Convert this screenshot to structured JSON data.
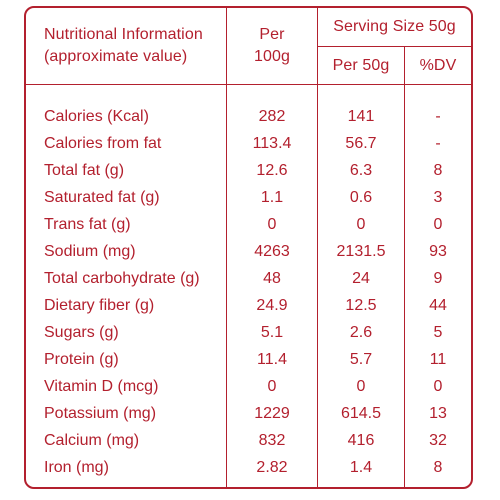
{
  "header": {
    "title_line1": "Nutritional Information",
    "title_line2": "(approximate value)",
    "per100_line1": "Per",
    "per100_line2": "100g",
    "serving_size": "Serving Size 50g",
    "per50": "Per 50g",
    "dv": "%DV"
  },
  "rows": [
    {
      "name": "Calories (Kcal)",
      "per100": "282",
      "per50": "141",
      "dv": "-"
    },
    {
      "name": "Calories from fat",
      "per100": "113.4",
      "per50": "56.7",
      "dv": "-"
    },
    {
      "name": "Total fat (g)",
      "per100": "12.6",
      "per50": "6.3",
      "dv": "8"
    },
    {
      "name": "Saturated fat (g)",
      "per100": "1.1",
      "per50": "0.6",
      "dv": "3"
    },
    {
      "name": "Trans fat (g)",
      "per100": "0",
      "per50": "0",
      "dv": "0"
    },
    {
      "name": "Sodium (mg)",
      "per100": "4263",
      "per50": "2131.5",
      "dv": "93"
    },
    {
      "name": "Total carbohydrate (g)",
      "per100": "48",
      "per50": "24",
      "dv": "9"
    },
    {
      "name": "Dietary fiber (g)",
      "per100": "24.9",
      "per50": "12.5",
      "dv": "44"
    },
    {
      "name": "Sugars (g)",
      "per100": "5.1",
      "per50": "2.6",
      "dv": "5"
    },
    {
      "name": "Protein (g)",
      "per100": "11.4",
      "per50": "5.7",
      "dv": "11"
    },
    {
      "name": "Vitamin D (mcg)",
      "per100": "0",
      "per50": "0",
      "dv": "0"
    },
    {
      "name": "Potassium (mg)",
      "per100": "1229",
      "per50": "614.5",
      "dv": "13"
    },
    {
      "name": "Calcium (mg)",
      "per100": "832",
      "per50": "416",
      "dv": "32"
    },
    {
      "name": "Iron (mg)",
      "per100": "2.82",
      "per50": "1.4",
      "dv": "8"
    }
  ],
  "colors": {
    "accent": "#b3202e",
    "background": "#ffffff"
  }
}
